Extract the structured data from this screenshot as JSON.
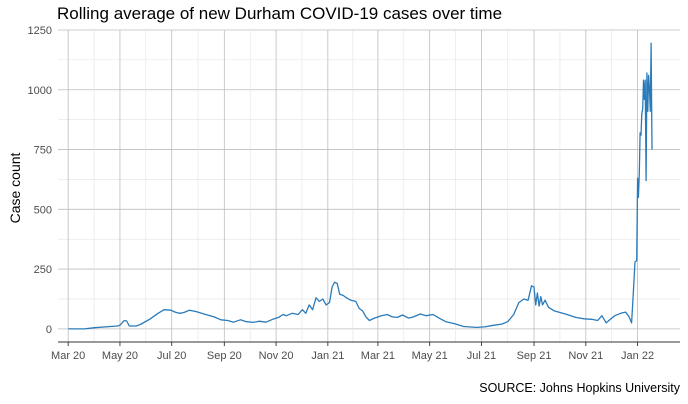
{
  "chart_data": {
    "type": "line",
    "title": "Rolling average of new Durham COVID-19 cases over time",
    "xlabel": "",
    "ylabel": "Case count",
    "source": "SOURCE: Johns Hopkins University",
    "xlim": [
      "2020-02-18",
      "2022-02-20"
    ],
    "ylim": [
      -55,
      1250
    ],
    "x_ticks": [
      {
        "date": "2020-03-01",
        "label": "Mar 20"
      },
      {
        "date": "2020-05-01",
        "label": "May 20"
      },
      {
        "date": "2020-07-01",
        "label": "Jul 20"
      },
      {
        "date": "2020-09-01",
        "label": "Sep 20"
      },
      {
        "date": "2020-11-01",
        "label": "Nov 20"
      },
      {
        "date": "2021-01-01",
        "label": "Jan 21"
      },
      {
        "date": "2021-03-01",
        "label": "Mar 21"
      },
      {
        "date": "2021-05-01",
        "label": "May 21"
      },
      {
        "date": "2021-07-01",
        "label": "Jul 21"
      },
      {
        "date": "2021-09-01",
        "label": "Sep 21"
      },
      {
        "date": "2021-11-01",
        "label": "Nov 21"
      },
      {
        "date": "2022-01-01",
        "label": "Jan 22"
      }
    ],
    "y_ticks": [
      0,
      250,
      500,
      750,
      1000,
      1250
    ],
    "grid": true,
    "legend": "none",
    "color": "#2b7bba",
    "series": [
      {
        "points": [
          [
            "2020-03-01",
            0
          ],
          [
            "2020-03-20",
            0
          ],
          [
            "2020-04-01",
            5
          ],
          [
            "2020-04-20",
            10
          ],
          [
            "2020-04-28",
            12
          ],
          [
            "2020-05-01",
            15
          ],
          [
            "2020-05-06",
            35
          ],
          [
            "2020-05-09",
            33
          ],
          [
            "2020-05-12",
            12
          ],
          [
            "2020-05-20",
            12
          ],
          [
            "2020-05-25",
            18
          ],
          [
            "2020-06-05",
            40
          ],
          [
            "2020-06-15",
            65
          ],
          [
            "2020-06-22",
            80
          ],
          [
            "2020-06-30",
            78
          ],
          [
            "2020-07-05",
            70
          ],
          [
            "2020-07-10",
            65
          ],
          [
            "2020-07-15",
            68
          ],
          [
            "2020-07-22",
            78
          ],
          [
            "2020-07-30",
            72
          ],
          [
            "2020-08-10",
            60
          ],
          [
            "2020-08-20",
            50
          ],
          [
            "2020-08-28",
            38
          ],
          [
            "2020-09-05",
            35
          ],
          [
            "2020-09-12",
            28
          ],
          [
            "2020-09-20",
            38
          ],
          [
            "2020-09-27",
            30
          ],
          [
            "2020-10-05",
            27
          ],
          [
            "2020-10-12",
            32
          ],
          [
            "2020-10-20",
            28
          ],
          [
            "2020-10-28",
            40
          ],
          [
            "2020-11-04",
            48
          ],
          [
            "2020-11-09",
            60
          ],
          [
            "2020-11-13",
            55
          ],
          [
            "2020-11-20",
            65
          ],
          [
            "2020-11-27",
            60
          ],
          [
            "2020-12-02",
            80
          ],
          [
            "2020-12-06",
            65
          ],
          [
            "2020-12-10",
            100
          ],
          [
            "2020-12-14",
            80
          ],
          [
            "2020-12-18",
            130
          ],
          [
            "2020-12-22",
            115
          ],
          [
            "2020-12-26",
            125
          ],
          [
            "2020-12-30",
            100
          ],
          [
            "2021-01-03",
            110
          ],
          [
            "2021-01-06",
            175
          ],
          [
            "2021-01-09",
            195
          ],
          [
            "2021-01-12",
            190
          ],
          [
            "2021-01-15",
            145
          ],
          [
            "2021-01-19",
            140
          ],
          [
            "2021-01-23",
            130
          ],
          [
            "2021-01-28",
            120
          ],
          [
            "2021-02-03",
            115
          ],
          [
            "2021-02-07",
            85
          ],
          [
            "2021-02-11",
            75
          ],
          [
            "2021-02-15",
            50
          ],
          [
            "2021-02-19",
            35
          ],
          [
            "2021-02-25",
            45
          ],
          [
            "2021-03-05",
            55
          ],
          [
            "2021-03-12",
            60
          ],
          [
            "2021-03-18",
            50
          ],
          [
            "2021-03-24",
            48
          ],
          [
            "2021-03-30",
            58
          ],
          [
            "2021-04-06",
            45
          ],
          [
            "2021-04-12",
            50
          ],
          [
            "2021-04-20",
            62
          ],
          [
            "2021-04-27",
            55
          ],
          [
            "2021-05-05",
            60
          ],
          [
            "2021-05-12",
            45
          ],
          [
            "2021-05-20",
            30
          ],
          [
            "2021-05-30",
            22
          ],
          [
            "2021-06-10",
            10
          ],
          [
            "2021-06-25",
            6
          ],
          [
            "2021-07-05",
            8
          ],
          [
            "2021-07-15",
            15
          ],
          [
            "2021-07-25",
            20
          ],
          [
            "2021-08-01",
            30
          ],
          [
            "2021-08-08",
            60
          ],
          [
            "2021-08-14",
            110
          ],
          [
            "2021-08-20",
            125
          ],
          [
            "2021-08-25",
            120
          ],
          [
            "2021-08-29",
            180
          ],
          [
            "2021-09-01",
            175
          ],
          [
            "2021-09-03",
            100
          ],
          [
            "2021-09-05",
            150
          ],
          [
            "2021-09-07",
            95
          ],
          [
            "2021-09-09",
            135
          ],
          [
            "2021-09-11",
            100
          ],
          [
            "2021-09-14",
            120
          ],
          [
            "2021-09-18",
            90
          ],
          [
            "2021-09-25",
            75
          ],
          [
            "2021-10-02",
            68
          ],
          [
            "2021-10-10",
            60
          ],
          [
            "2021-10-20",
            48
          ],
          [
            "2021-10-30",
            42
          ],
          [
            "2021-11-08",
            40
          ],
          [
            "2021-11-15",
            35
          ],
          [
            "2021-11-20",
            55
          ],
          [
            "2021-11-25",
            25
          ],
          [
            "2021-11-30",
            40
          ],
          [
            "2021-12-05",
            55
          ],
          [
            "2021-12-12",
            65
          ],
          [
            "2021-12-18",
            70
          ],
          [
            "2021-12-22",
            50
          ],
          [
            "2021-12-25",
            25
          ],
          [
            "2021-12-27",
            150
          ],
          [
            "2021-12-29",
            280
          ],
          [
            "2021-12-31",
            285
          ],
          [
            "2022-01-01",
            630
          ],
          [
            "2022-01-02",
            550
          ],
          [
            "2022-01-03",
            650
          ],
          [
            "2022-01-04",
            820
          ],
          [
            "2022-01-05",
            810
          ],
          [
            "2022-01-06",
            900
          ],
          [
            "2022-01-07",
            920
          ],
          [
            "2022-01-08",
            1040
          ],
          [
            "2022-01-09",
            960
          ],
          [
            "2022-01-10",
            1040
          ],
          [
            "2022-01-11",
            620
          ],
          [
            "2022-01-12",
            1070
          ],
          [
            "2022-01-13",
            910
          ],
          [
            "2022-01-14",
            1060
          ],
          [
            "2022-01-15",
            1000
          ],
          [
            "2022-01-16",
            910
          ],
          [
            "2022-01-17",
            1195
          ],
          [
            "2022-01-18",
            750
          ]
        ]
      }
    ]
  }
}
